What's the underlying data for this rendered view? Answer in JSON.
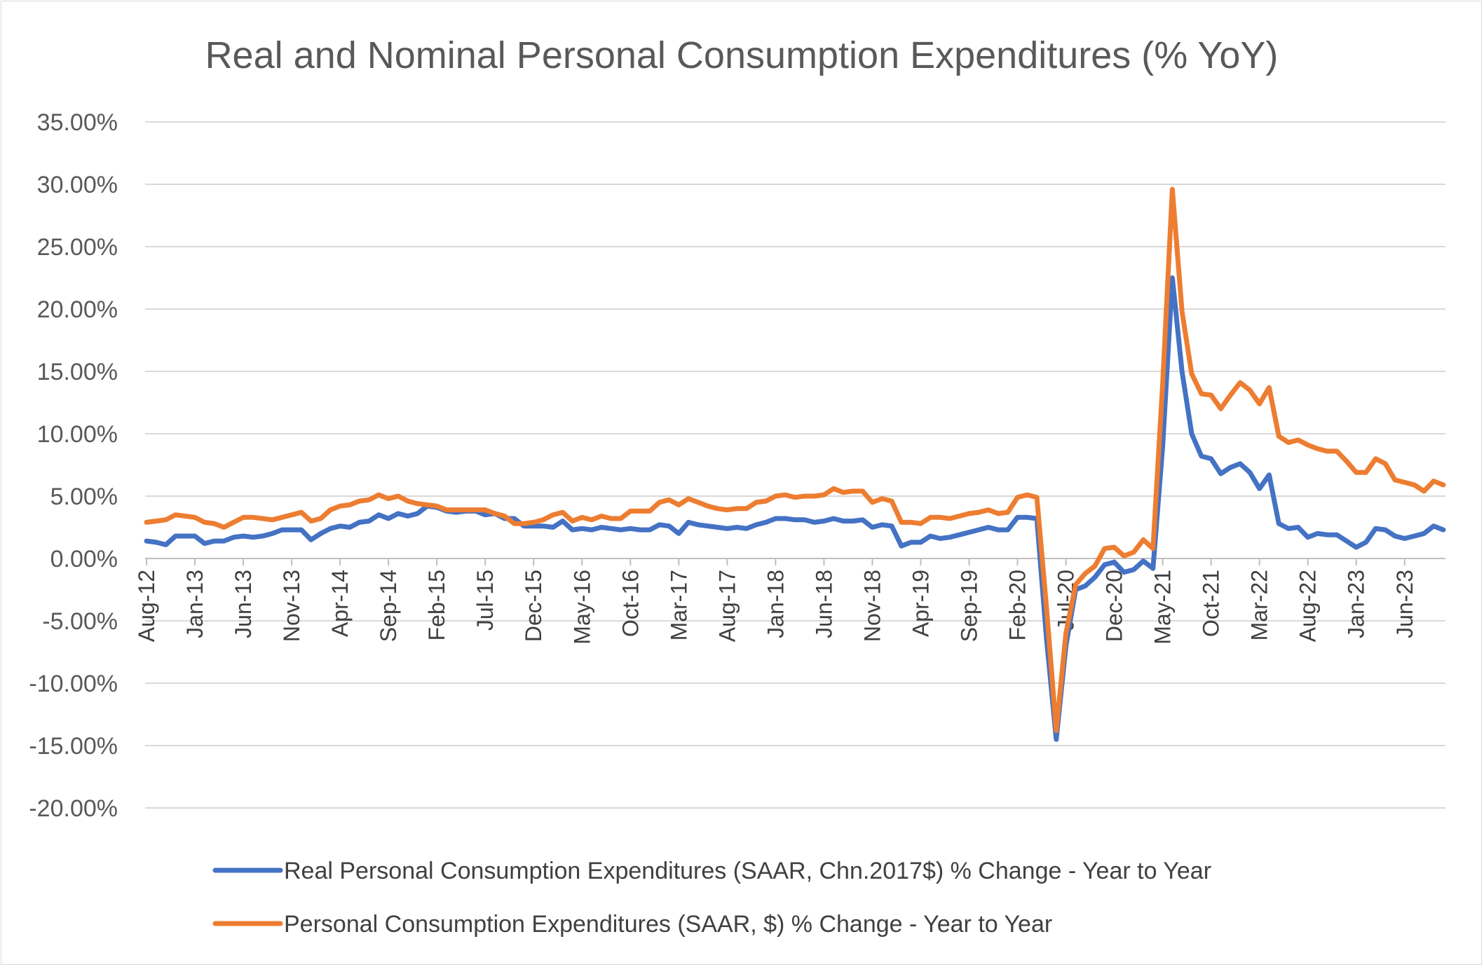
{
  "chart_data": {
    "type": "line",
    "title": "Real and Nominal Personal Consumption Expenditures (% YoY)",
    "xlabel": "",
    "ylabel": "",
    "ylim": [
      -20,
      35
    ],
    "ytick_labels": [
      "35.00%",
      "30.00%",
      "25.00%",
      "20.00%",
      "15.00%",
      "10.00%",
      "5.00%",
      "0.00%",
      "-5.00%",
      "-10.00%",
      "-15.00%",
      "-20.00%"
    ],
    "ytick_values": [
      35,
      30,
      25,
      20,
      15,
      10,
      5,
      0,
      -5,
      -10,
      -15,
      -20
    ],
    "xtick_labels": [
      "Aug-12",
      "Jan-13",
      "Jun-13",
      "Nov-13",
      "Apr-14",
      "Sep-14",
      "Feb-15",
      "Jul-15",
      "Dec-15",
      "May-16",
      "Oct-16",
      "Mar-17",
      "Aug-17",
      "Jan-18",
      "Jun-18",
      "Nov-18",
      "Apr-19",
      "Sep-19",
      "Feb-20",
      "Jul-20",
      "Dec-20",
      "May-21",
      "Oct-21",
      "Mar-22",
      "Aug-22",
      "Jan-23",
      "Jun-23"
    ],
    "x_start": "Aug-12",
    "x_end": "Sep-23",
    "grid": true,
    "legend_position": "bottom",
    "series": [
      {
        "name": "Real Personal Consumption Expenditures (SAAR, Chn.2017$) % Change - Year to Year",
        "color": "#4472c4",
        "values": [
          1.4,
          1.3,
          1.1,
          1.8,
          1.8,
          1.8,
          1.2,
          1.4,
          1.4,
          1.7,
          1.8,
          1.7,
          1.8,
          2.0,
          2.3,
          2.3,
          2.3,
          1.5,
          2.0,
          2.4,
          2.6,
          2.5,
          2.9,
          3.0,
          3.5,
          3.2,
          3.6,
          3.4,
          3.6,
          4.2,
          4.1,
          3.8,
          3.7,
          3.8,
          3.8,
          3.5,
          3.6,
          3.2,
          3.2,
          2.6,
          2.6,
          2.6,
          2.5,
          3.0,
          2.3,
          2.4,
          2.3,
          2.5,
          2.4,
          2.3,
          2.4,
          2.3,
          2.3,
          2.7,
          2.6,
          2.0,
          2.9,
          2.7,
          2.6,
          2.5,
          2.4,
          2.5,
          2.4,
          2.7,
          2.9,
          3.2,
          3.2,
          3.1,
          3.1,
          2.9,
          3.0,
          3.2,
          3.0,
          3.0,
          3.1,
          2.5,
          2.7,
          2.6,
          1.0,
          1.3,
          1.3,
          1.8,
          1.6,
          1.7,
          1.9,
          2.1,
          2.3,
          2.5,
          2.3,
          2.3,
          3.3,
          3.3,
          3.2,
          -6.5,
          -14.5,
          -7.0,
          -2.5,
          -2.2,
          -1.5,
          -0.5,
          -0.3,
          -1.1,
          -0.9,
          -0.2,
          -0.8,
          9.0,
          22.5,
          15.0,
          10.0,
          8.2,
          8.0,
          6.8,
          7.3,
          7.6,
          6.9,
          5.6,
          6.7,
          2.8,
          2.4,
          2.5,
          1.7,
          2.0,
          1.9,
          1.9,
          1.4,
          0.9,
          1.3,
          2.4,
          2.3,
          1.8,
          1.6,
          1.8,
          2.0,
          2.6,
          2.3
        ]
      },
      {
        "name": "Personal Consumption Expenditures (SAAR, $) % Change - Year to Year",
        "color": "#ed7d31",
        "values": [
          2.9,
          3.0,
          3.1,
          3.5,
          3.4,
          3.3,
          2.9,
          2.8,
          2.5,
          2.9,
          3.3,
          3.3,
          3.2,
          3.1,
          3.3,
          3.5,
          3.7,
          3.0,
          3.2,
          3.9,
          4.2,
          4.3,
          4.6,
          4.7,
          5.1,
          4.8,
          5.0,
          4.6,
          4.4,
          4.3,
          4.2,
          3.9,
          3.9,
          3.9,
          3.9,
          3.9,
          3.6,
          3.4,
          2.8,
          2.8,
          2.9,
          3.1,
          3.5,
          3.7,
          3.0,
          3.3,
          3.1,
          3.4,
          3.2,
          3.2,
          3.8,
          3.8,
          3.8,
          4.5,
          4.7,
          4.3,
          4.8,
          4.5,
          4.2,
          4.0,
          3.9,
          4.0,
          4.0,
          4.5,
          4.6,
          5.0,
          5.1,
          4.9,
          5.0,
          5.0,
          5.1,
          5.6,
          5.3,
          5.4,
          5.4,
          4.5,
          4.8,
          4.6,
          2.9,
          2.9,
          2.8,
          3.3,
          3.3,
          3.2,
          3.4,
          3.6,
          3.7,
          3.9,
          3.6,
          3.7,
          4.9,
          5.1,
          4.9,
          -4.0,
          -13.8,
          -6.0,
          -2.1,
          -1.2,
          -0.6,
          0.8,
          0.9,
          0.2,
          0.5,
          1.5,
          0.8,
          14.0,
          29.6,
          19.8,
          14.8,
          13.2,
          13.1,
          12.0,
          13.1,
          14.1,
          13.5,
          12.4,
          13.7,
          9.8,
          9.3,
          9.5,
          9.1,
          8.8,
          8.6,
          8.6,
          7.8,
          6.9,
          6.9,
          8.0,
          7.6,
          6.3,
          6.1,
          5.9,
          5.4,
          6.2,
          5.9
        ]
      }
    ]
  }
}
